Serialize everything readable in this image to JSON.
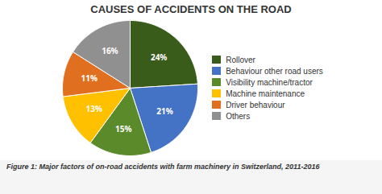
{
  "chart_data": {
    "type": "pie",
    "title": "CAUSES OF ACCIDENTS ON THE ROAD",
    "categories": [
      "Rollover",
      "Behaviour other road users",
      "Visibility machine/tractor",
      "Machine maintenance",
      "Driver behaviour",
      "Others"
    ],
    "values": [
      24,
      21,
      15,
      13,
      11,
      16
    ],
    "value_labels": [
      "24%",
      "21%",
      "15%",
      "13%",
      "11%",
      "16%"
    ],
    "data_labels": true,
    "colors": [
      "#3a5c1a",
      "#4472c4",
      "#5a8a2a",
      "#ffc000",
      "#e07020",
      "#909090"
    ],
    "legend": "right",
    "caption": "Figure 1: Major factors of on-road accidents with farm machinery in Switzerland, 2011-2016"
  }
}
